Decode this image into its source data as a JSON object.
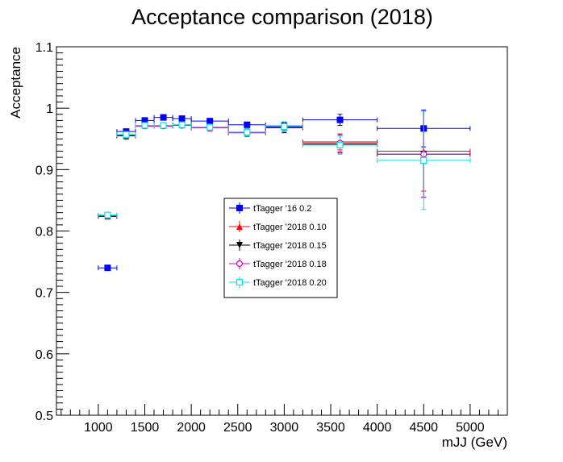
{
  "chart_data": {
    "type": "scatter",
    "title": "Acceptance comparison (2018)",
    "xlabel": "mJJ (GeV)",
    "ylabel": "Acceptance",
    "xlim": [
      550,
      5400
    ],
    "ylim": [
      0.5,
      1.1
    ],
    "xticks": [
      1000,
      1500,
      2000,
      2500,
      3000,
      3500,
      4000,
      4500,
      5000
    ],
    "yticks": [
      0.5,
      0.6,
      0.7,
      0.8,
      0.9,
      1,
      1.1
    ],
    "xtick_labels": [
      "1000",
      "1500",
      "2000",
      "2500",
      "3000",
      "3500",
      "4000",
      "4500",
      "5000"
    ],
    "ytick_labels": [
      "0.5",
      "0.6",
      "0.7",
      "0.8",
      "0.9",
      "1",
      "1.1"
    ],
    "legend_position": "center",
    "grid": false,
    "x": [
      1100,
      1300,
      1500,
      1700,
      1900,
      2200,
      2600,
      3000,
      3600,
      4500
    ],
    "xerr": [
      100,
      100,
      100,
      100,
      100,
      200,
      200,
      200,
      400,
      500
    ],
    "series": [
      {
        "name": "tTagger '16 0.2",
        "color": "#0000ff",
        "marker": "square-filled",
        "values": [
          0.74,
          0.962,
          0.98,
          0.985,
          0.983,
          0.979,
          0.973,
          0.971,
          0.981,
          0.967
        ],
        "yerr": [
          0.002,
          0.004,
          0.003,
          0.003,
          0.003,
          0.004,
          0.004,
          0.006,
          0.009,
          0.03
        ]
      },
      {
        "name": "tTagger '2018 0.10",
        "color": "#ff0000",
        "marker": "triangle-up-filled",
        "values": [
          0.824,
          0.955,
          0.972,
          0.972,
          0.973,
          0.969,
          0.961,
          0.969,
          0.945,
          0.93
        ],
        "yerr": [
          0.004,
          0.005,
          0.004,
          0.004,
          0.004,
          0.005,
          0.006,
          0.008,
          0.013,
          0.065
        ]
      },
      {
        "name": "tTagger '2018 0.15",
        "color": "#000000",
        "marker": "triangle-down-filled",
        "values": [
          0.824,
          0.955,
          0.971,
          0.971,
          0.972,
          0.968,
          0.96,
          0.968,
          0.941,
          0.925
        ],
        "yerr": [
          0.004,
          0.005,
          0.004,
          0.004,
          0.004,
          0.005,
          0.006,
          0.008,
          0.014,
          0.07
        ]
      },
      {
        "name": "tTagger '2018 0.18",
        "color": "#cc00cc",
        "marker": "circle-open",
        "values": [
          0.825,
          0.956,
          0.971,
          0.971,
          0.972,
          0.968,
          0.96,
          0.969,
          0.943,
          0.925
        ],
        "yerr": [
          0.004,
          0.005,
          0.004,
          0.004,
          0.004,
          0.005,
          0.006,
          0.008,
          0.014,
          0.07
        ]
      },
      {
        "name": "tTagger '2018 0.20",
        "color": "#00e5e5",
        "marker": "square-open",
        "values": [
          0.826,
          0.957,
          0.972,
          0.972,
          0.973,
          0.969,
          0.961,
          0.97,
          0.94,
          0.915
        ],
        "yerr": [
          0.004,
          0.005,
          0.004,
          0.004,
          0.004,
          0.005,
          0.006,
          0.008,
          0.015,
          0.08
        ]
      }
    ]
  }
}
